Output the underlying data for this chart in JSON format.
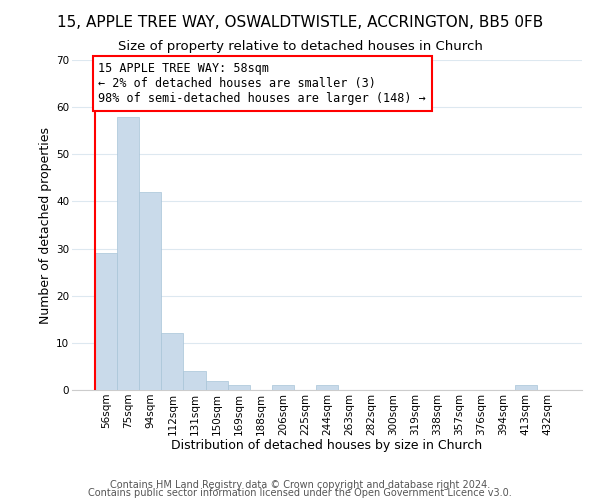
{
  "title": "15, APPLE TREE WAY, OSWALDTWISTLE, ACCRINGTON, BB5 0FB",
  "subtitle": "Size of property relative to detached houses in Church",
  "xlabel": "Distribution of detached houses by size in Church",
  "ylabel": "Number of detached properties",
  "all_bar_values": [
    29,
    58,
    42,
    12,
    4,
    2,
    1,
    0,
    1,
    0,
    1,
    0,
    0,
    0,
    0,
    0,
    0,
    0,
    0,
    1,
    0
  ],
  "bar_labels": [
    "56sqm",
    "75sqm",
    "94sqm",
    "112sqm",
    "131sqm",
    "150sqm",
    "169sqm",
    "188sqm",
    "206sqm",
    "225sqm",
    "244sqm",
    "263sqm",
    "282sqm",
    "300sqm",
    "319sqm",
    "338sqm",
    "357sqm",
    "376sqm",
    "394sqm",
    "413sqm",
    "432sqm"
  ],
  "bar_color": "#c9daea",
  "bar_edge_color": "#a8c4d8",
  "annotation_box_text": "15 APPLE TREE WAY: 58sqm\n← 2% of detached houses are smaller (3)\n98% of semi-detached houses are larger (148) →",
  "annotation_box_color": "white",
  "annotation_box_edge_color": "red",
  "property_line_color": "red",
  "ylim": [
    0,
    70
  ],
  "yticks": [
    0,
    10,
    20,
    30,
    40,
    50,
    60,
    70
  ],
  "footer1": "Contains HM Land Registry data © Crown copyright and database right 2024.",
  "footer2": "Contains public sector information licensed under the Open Government Licence v3.0.",
  "bg_color": "#ffffff",
  "grid_color": "#dde8f0",
  "title_fontsize": 11,
  "subtitle_fontsize": 9.5,
  "axis_label_fontsize": 9,
  "tick_fontsize": 7.5,
  "annotation_fontsize": 8.5,
  "footer_fontsize": 7
}
